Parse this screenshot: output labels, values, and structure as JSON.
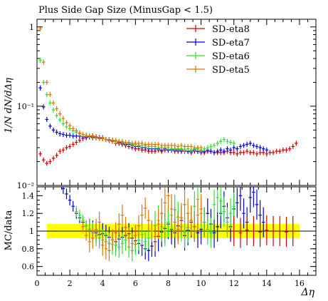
{
  "chart_data": [
    {
      "type": "scatter",
      "panel": "main",
      "title": "Plus Side Gap Size (MinusGap < 1.5)",
      "ylabel": "1/N dN/dΔη",
      "xlabel": "",
      "xlim": [
        0,
        17
      ],
      "ylim": [
        0.01,
        1.25
      ],
      "yscale": "log",
      "y_ticks": [
        {
          "value": 0.01,
          "label": "10⁻²"
        },
        {
          "value": 0.1,
          "label": "10⁻¹"
        },
        {
          "value": 1,
          "label": "1"
        }
      ],
      "legend_position": "top-right",
      "colors": {
        "SD-eta8": "#cc0000",
        "SD-eta7": "#0000cc",
        "SD-eta6": "#33dd33",
        "SD-eta5": "#dd7700"
      },
      "series": [
        {
          "name": "SD-eta8",
          "x": [
            0.2,
            0.4,
            0.6,
            0.8,
            1.0,
            1.2,
            1.4,
            1.6,
            1.8,
            2.0,
            2.2,
            2.4,
            2.6,
            2.8,
            3.0,
            3.2,
            3.4,
            3.6,
            3.8,
            4.0,
            4.2,
            4.4,
            4.6,
            4.8,
            5.0,
            5.2,
            5.4,
            5.6,
            5.8,
            6.0,
            6.2,
            6.4,
            6.6,
            6.8,
            7.0,
            7.2,
            7.4,
            7.6,
            7.8,
            8.0,
            8.2,
            8.4,
            8.6,
            8.8,
            9.0,
            9.2,
            9.4,
            9.6,
            9.8,
            10.0,
            10.2,
            10.4,
            10.6,
            10.8,
            11.0,
            11.2,
            11.4,
            11.6,
            11.8,
            12.0,
            12.2,
            12.4,
            12.6,
            12.8,
            13.0,
            13.2,
            13.4,
            13.6,
            13.8,
            14.0,
            14.2,
            14.4,
            14.6,
            14.8,
            15.0,
            15.2,
            15.4,
            15.6,
            15.8
          ],
          "y": [
            0.025,
            0.021,
            0.019,
            0.02,
            0.022,
            0.024,
            0.027,
            0.028,
            0.03,
            0.031,
            0.033,
            0.035,
            0.037,
            0.039,
            0.04,
            0.041,
            0.042,
            0.041,
            0.04,
            0.04,
            0.038,
            0.037,
            0.036,
            0.034,
            0.034,
            0.033,
            0.032,
            0.031,
            0.03,
            0.029,
            0.029,
            0.028,
            0.028,
            0.027,
            0.027,
            0.027,
            0.028,
            0.027,
            0.028,
            0.028,
            0.028,
            0.027,
            0.027,
            0.028,
            0.027,
            0.027,
            0.026,
            0.027,
            0.027,
            0.026,
            0.026,
            0.027,
            0.027,
            0.026,
            0.026,
            0.026,
            0.026,
            0.027,
            0.026,
            0.026,
            0.025,
            0.026,
            0.026,
            0.027,
            0.026,
            0.026,
            0.025,
            0.026,
            0.026,
            0.025,
            0.026,
            0.026,
            0.027,
            0.027,
            0.028,
            0.028,
            0.029,
            0.031,
            0.034
          ]
        },
        {
          "name": "SD-eta7",
          "x": [
            0.2,
            0.4,
            0.6,
            0.8,
            1.0,
            1.2,
            1.4,
            1.6,
            1.8,
            2.0,
            2.2,
            2.4,
            2.6,
            2.8,
            3.0,
            3.2,
            3.4,
            3.6,
            3.8,
            4.0,
            4.2,
            4.4,
            4.6,
            4.8,
            5.0,
            5.2,
            5.4,
            5.6,
            5.8,
            6.0,
            6.2,
            6.4,
            6.6,
            6.8,
            7.0,
            7.2,
            7.4,
            7.6,
            7.8,
            8.0,
            8.2,
            8.4,
            8.6,
            8.8,
            9.0,
            9.2,
            9.4,
            9.6,
            9.8,
            10.0,
            10.2,
            10.4,
            10.6,
            10.8,
            11.0,
            11.2,
            11.4,
            11.6,
            11.8,
            12.0,
            12.2,
            12.4,
            12.6,
            12.8,
            13.0,
            13.2,
            13.4,
            13.6,
            13.8,
            14.0
          ],
          "y": [
            0.17,
            0.098,
            0.068,
            0.056,
            0.05,
            0.047,
            0.045,
            0.044,
            0.043,
            0.043,
            0.042,
            0.042,
            0.042,
            0.041,
            0.041,
            0.041,
            0.04,
            0.04,
            0.04,
            0.039,
            0.038,
            0.038,
            0.037,
            0.036,
            0.035,
            0.034,
            0.033,
            0.033,
            0.032,
            0.031,
            0.031,
            0.03,
            0.03,
            0.029,
            0.029,
            0.029,
            0.029,
            0.028,
            0.029,
            0.028,
            0.028,
            0.028,
            0.028,
            0.027,
            0.028,
            0.027,
            0.027,
            0.028,
            0.027,
            0.027,
            0.027,
            0.028,
            0.027,
            0.026,
            0.027,
            0.028,
            0.027,
            0.029,
            0.028,
            0.03,
            0.029,
            0.031,
            0.032,
            0.033,
            0.034,
            0.032,
            0.031,
            0.03,
            0.029,
            0.028
          ]
        },
        {
          "name": "SD-eta6",
          "x": [
            0.2,
            0.4,
            0.6,
            0.8,
            1.0,
            1.2,
            1.4,
            1.6,
            1.8,
            2.0,
            2.2,
            2.4,
            2.6,
            2.8,
            3.0,
            3.2,
            3.4,
            3.6,
            3.8,
            4.0,
            4.2,
            4.4,
            4.6,
            4.8,
            5.0,
            5.2,
            5.4,
            5.6,
            5.8,
            6.0,
            6.2,
            6.4,
            6.6,
            6.8,
            7.0,
            7.2,
            7.4,
            7.6,
            7.8,
            8.0,
            8.2,
            8.4,
            8.6,
            8.8,
            9.0,
            9.2,
            9.4,
            9.6,
            9.8,
            10.0,
            10.2,
            10.4,
            10.6,
            10.8,
            11.0,
            11.2,
            11.4,
            11.6,
            11.8,
            12.0
          ],
          "y": [
            0.38,
            0.2,
            0.14,
            0.11,
            0.09,
            0.076,
            0.067,
            0.06,
            0.055,
            0.052,
            0.049,
            0.047,
            0.045,
            0.044,
            0.043,
            0.042,
            0.041,
            0.04,
            0.039,
            0.039,
            0.038,
            0.038,
            0.037,
            0.036,
            0.036,
            0.035,
            0.034,
            0.034,
            0.033,
            0.033,
            0.032,
            0.032,
            0.032,
            0.031,
            0.031,
            0.031,
            0.03,
            0.03,
            0.03,
            0.03,
            0.029,
            0.029,
            0.029,
            0.029,
            0.028,
            0.029,
            0.028,
            0.029,
            0.029,
            0.028,
            0.029,
            0.03,
            0.031,
            0.032,
            0.034,
            0.036,
            0.038,
            0.036,
            0.035,
            0.034
          ]
        },
        {
          "name": "SD-eta5",
          "x": [
            0.2,
            0.4,
            0.6,
            0.8,
            1.0,
            1.2,
            1.4,
            1.6,
            1.8,
            2.0,
            2.2,
            2.4,
            2.6,
            2.8,
            3.0,
            3.2,
            3.4,
            3.6,
            3.8,
            4.0,
            4.2,
            4.4,
            4.6,
            4.8,
            5.0,
            5.2,
            5.4,
            5.6,
            5.8,
            6.0,
            6.2,
            6.4,
            6.6,
            6.8,
            7.0,
            7.2,
            7.4,
            7.6,
            7.8,
            8.0,
            8.2,
            8.4,
            8.6,
            8.8,
            9.0,
            9.2,
            9.4,
            9.6,
            9.8,
            10.0
          ],
          "y": [
            0.95,
            0.36,
            0.2,
            0.14,
            0.11,
            0.093,
            0.08,
            0.07,
            0.062,
            0.057,
            0.052,
            0.049,
            0.046,
            0.044,
            0.043,
            0.042,
            0.041,
            0.04,
            0.039,
            0.039,
            0.038,
            0.038,
            0.037,
            0.037,
            0.036,
            0.036,
            0.035,
            0.035,
            0.034,
            0.034,
            0.034,
            0.034,
            0.033,
            0.033,
            0.033,
            0.033,
            0.033,
            0.032,
            0.032,
            0.032,
            0.032,
            0.032,
            0.031,
            0.032,
            0.031,
            0.031,
            0.031,
            0.03,
            0.03,
            0.03
          ]
        }
      ]
    },
    {
      "type": "scatter",
      "panel": "ratio",
      "ylabel": "MC/data",
      "xlabel": "Δη",
      "xlim": [
        0,
        17
      ],
      "ylim": [
        0.5,
        1.5
      ],
      "y_ticks": [
        {
          "value": 0.6,
          "label": "0.6"
        },
        {
          "value": 0.8,
          "label": "0.8"
        },
        {
          "value": 1.0,
          "label": "1"
        },
        {
          "value": 1.2,
          "label": "1.2"
        },
        {
          "value": 1.4,
          "label": "1.4"
        }
      ],
      "x_ticks": [
        {
          "value": 0,
          "label": "0"
        },
        {
          "value": 2,
          "label": "2"
        },
        {
          "value": 4,
          "label": "4"
        },
        {
          "value": 6,
          "label": "6"
        },
        {
          "value": 8,
          "label": "8"
        },
        {
          "value": 10,
          "label": "10"
        },
        {
          "value": 12,
          "label": "12"
        },
        {
          "value": 14,
          "label": "14"
        },
        {
          "value": 16,
          "label": "16"
        }
      ],
      "reference_line": 1.0,
      "uncertainty_band": {
        "x": [
          0.6,
          16
        ],
        "y": [
          0.92,
          1.08
        ],
        "color": "#ffff00"
      },
      "series": [
        {
          "name": "SD-eta7",
          "color": "#0000cc",
          "x": [
            1.6,
            1.8,
            2.0,
            2.2,
            2.4,
            2.6,
            2.8,
            3.0,
            3.2,
            3.4,
            3.6,
            3.8,
            4.0,
            4.2,
            4.4,
            4.6,
            4.8,
            5.0,
            5.2,
            5.4,
            5.6,
            5.8,
            6.0,
            6.2,
            6.4,
            6.6,
            6.8,
            7.0,
            7.2,
            7.4,
            7.6,
            7.8,
            8.0,
            8.2,
            8.4,
            8.6,
            8.8,
            9.0,
            9.2,
            9.4,
            9.6,
            9.8,
            10.0,
            10.2,
            10.4,
            10.6,
            10.8,
            11.0,
            11.2,
            11.4,
            11.6,
            11.8,
            12.0,
            12.2,
            12.4,
            12.6,
            12.8,
            13.0,
            13.2,
            13.4,
            13.6,
            13.8
          ],
          "y": [
            1.48,
            1.42,
            1.35,
            1.28,
            1.2,
            1.15,
            1.1,
            1.06,
            1.02,
            1.0,
            0.98,
            0.96,
            0.97,
            0.95,
            0.93,
            0.9,
            0.88,
            0.91,
            0.93,
            0.95,
            0.97,
            0.92,
            0.89,
            0.86,
            0.84,
            0.8,
            0.78,
            0.83,
            0.88,
            0.94,
            0.99,
            1.03,
            1.08,
            1.02,
            0.98,
            1.06,
            1.12,
            0.95,
            1.01,
            1.1,
            1.05,
            0.98,
            1.02,
            1.1,
            1.2,
            1.08,
            0.98,
            1.05,
            1.2,
            1.28,
            1.15,
            1.05,
            1.25,
            1.32,
            1.4,
            1.2,
            1.1,
            1.38,
            1.44,
            1.3,
            1.18,
            1.1
          ]
        },
        {
          "name": "SD-eta6",
          "color": "#33dd33",
          "x": [
            2.4,
            2.6,
            2.8,
            3.0,
            3.2,
            3.4,
            3.6,
            3.8,
            4.0,
            4.2,
            4.4,
            4.6,
            4.8,
            5.0,
            5.2,
            5.4,
            5.6,
            5.8,
            6.0,
            6.2,
            6.4,
            6.6,
            6.8,
            7.0,
            7.2,
            7.4,
            7.6,
            7.8,
            8.0,
            8.2,
            8.4,
            8.6,
            8.8,
            9.0,
            9.2,
            9.4,
            9.6,
            9.8,
            10.0,
            10.2,
            10.4,
            10.6,
            10.8,
            11.0,
            11.2,
            11.4,
            11.6,
            11.8,
            12.0
          ],
          "y": [
            1.22,
            1.18,
            1.12,
            1.06,
            1.02,
            0.98,
            0.95,
            0.92,
            0.9,
            0.88,
            0.86,
            0.85,
            0.84,
            0.82,
            0.86,
            0.9,
            0.82,
            0.78,
            0.85,
            0.9,
            0.96,
            0.88,
            0.92,
            1.0,
            1.06,
            1.12,
            1.05,
            1.0,
            1.1,
            1.18,
            1.24,
            1.16,
            1.05,
            0.98,
            1.04,
            1.12,
            1.28,
            1.36,
            1.2,
            1.1,
            1.02,
            0.98,
            1.3,
            1.38,
            1.34,
            1.22,
            1.1,
            1.2,
            1.28
          ]
        },
        {
          "name": "SD-eta5",
          "color": "#dd7700",
          "x": [
            2.8,
            3.0,
            3.2,
            3.4,
            3.6,
            3.8,
            4.0,
            4.2,
            4.4,
            4.6,
            4.8,
            5.0,
            5.2,
            5.4,
            5.6,
            5.8,
            6.0,
            6.2,
            6.4,
            6.6,
            6.8,
            7.0,
            7.2,
            7.4,
            7.6,
            7.8,
            8.0,
            8.2,
            8.4,
            8.6,
            8.8,
            9.0,
            9.2,
            9.4,
            9.6,
            9.8,
            10.0
          ],
          "y": [
            1.05,
            0.95,
            0.88,
            0.92,
            1.02,
            1.1,
            0.84,
            0.8,
            0.78,
            0.9,
            0.98,
            1.08,
            1.18,
            1.04,
            0.92,
            0.86,
            0.95,
            1.06,
            1.18,
            1.26,
            1.12,
            1.0,
            0.94,
            1.08,
            1.2,
            1.32,
            1.4,
            1.25,
            1.1,
            1.02,
            1.15,
            1.3,
            1.2,
            1.12,
            1.05,
            1.18,
            1.25
          ]
        },
        {
          "name": "SD-eta8",
          "color": "#cc0000",
          "x": [
            12.0,
            12.4,
            12.8,
            13.2,
            13.6,
            14.0,
            14.4,
            14.8,
            15.2,
            15.6
          ],
          "y": [
            1.0,
            0.98,
            1.01,
            1.0,
            0.99,
            1.01,
            1.0,
            1.0,
            0.99,
            1.0
          ]
        }
      ]
    }
  ]
}
